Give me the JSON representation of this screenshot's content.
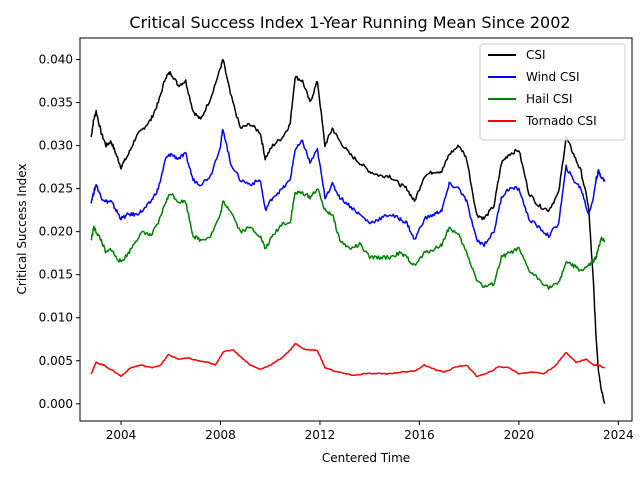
{
  "chart_data": {
    "type": "line",
    "title": "Critical Success Index 1-Year Running Mean Since 2002",
    "xlabel": "Centered Time",
    "ylabel": "Critical Success Index",
    "xlim": [
      2002.35,
      2024.55
    ],
    "ylim": [
      -0.002,
      0.0425
    ],
    "xticks": [
      2004,
      2008,
      2012,
      2016,
      2020,
      2024
    ],
    "yticks": [
      0.0,
      0.005,
      0.01,
      0.015,
      0.02,
      0.025,
      0.03,
      0.035,
      0.04
    ],
    "ytick_labels": [
      "0.000",
      "0.005",
      "0.010",
      "0.015",
      "0.020",
      "0.025",
      "0.030",
      "0.035",
      "0.040"
    ],
    "grid": false,
    "legend_position": "top-right",
    "series": [
      {
        "name": "CSI",
        "color": "#000000",
        "x": [
          2002.8,
          2002.9,
          2003.0,
          2003.2,
          2003.4,
          2003.6,
          2003.8,
          2004.0,
          2004.3,
          2004.6,
          2004.9,
          2005.2,
          2005.5,
          2005.8,
          2006.0,
          2006.3,
          2006.6,
          2006.9,
          2007.2,
          2007.6,
          2008.0,
          2008.1,
          2008.4,
          2008.8,
          2009.2,
          2009.6,
          2009.8,
          2010.1,
          2010.5,
          2010.8,
          2011.0,
          2011.3,
          2011.6,
          2011.9,
          2012.2,
          2012.5,
          2012.8,
          2013.2,
          2013.6,
          2014.0,
          2014.4,
          2014.8,
          2015.2,
          2015.5,
          2015.8,
          2016.2,
          2016.6,
          2016.9,
          2017.2,
          2017.6,
          2017.9,
          2018.3,
          2018.6,
          2019.0,
          2019.3,
          2019.6,
          2020.0,
          2020.4,
          2020.8,
          2021.2,
          2021.6,
          2021.9,
          2022.2,
          2022.5,
          2022.8,
          2023.0,
          2023.1,
          2023.2,
          2023.3,
          2023.45
        ],
        "values": [
          0.031,
          0.033,
          0.034,
          0.0315,
          0.03,
          0.0305,
          0.029,
          0.0275,
          0.029,
          0.031,
          0.032,
          0.033,
          0.035,
          0.038,
          0.0385,
          0.037,
          0.0375,
          0.034,
          0.033,
          0.0355,
          0.039,
          0.04,
          0.036,
          0.032,
          0.0325,
          0.0315,
          0.0285,
          0.03,
          0.031,
          0.0325,
          0.038,
          0.0375,
          0.035,
          0.0375,
          0.03,
          0.032,
          0.0305,
          0.029,
          0.028,
          0.027,
          0.0265,
          0.0265,
          0.0255,
          0.025,
          0.0235,
          0.0265,
          0.027,
          0.027,
          0.029,
          0.03,
          0.0285,
          0.022,
          0.0215,
          0.023,
          0.028,
          0.029,
          0.0295,
          0.0245,
          0.023,
          0.0225,
          0.0245,
          0.031,
          0.029,
          0.027,
          0.023,
          0.014,
          0.008,
          0.004,
          0.002,
          0.0
        ]
      },
      {
        "name": "Wind CSI",
        "color": "#0000ff",
        "x": [
          2002.8,
          2002.9,
          2003.0,
          2003.2,
          2003.4,
          2003.6,
          2003.8,
          2004.0,
          2004.3,
          2004.6,
          2004.9,
          2005.2,
          2005.5,
          2005.8,
          2006.0,
          2006.3,
          2006.6,
          2006.9,
          2007.2,
          2007.6,
          2008.0,
          2008.1,
          2008.4,
          2008.8,
          2009.2,
          2009.6,
          2009.8,
          2010.1,
          2010.5,
          2010.8,
          2011.0,
          2011.3,
          2011.6,
          2011.9,
          2012.2,
          2012.5,
          2012.8,
          2013.2,
          2013.6,
          2014.0,
          2014.4,
          2014.8,
          2015.2,
          2015.5,
          2015.8,
          2016.2,
          2016.6,
          2016.9,
          2017.2,
          2017.6,
          2017.9,
          2018.3,
          2018.6,
          2019.0,
          2019.3,
          2019.6,
          2020.0,
          2020.4,
          2020.8,
          2021.2,
          2021.6,
          2021.9,
          2022.2,
          2022.5,
          2022.8,
          2023.0,
          2023.1,
          2023.2,
          2023.3,
          2023.45
        ],
        "values": [
          0.0235,
          0.0245,
          0.0255,
          0.024,
          0.0235,
          0.0235,
          0.0225,
          0.0215,
          0.022,
          0.022,
          0.0225,
          0.0235,
          0.025,
          0.0285,
          0.029,
          0.0285,
          0.029,
          0.026,
          0.0255,
          0.0265,
          0.03,
          0.032,
          0.028,
          0.026,
          0.0255,
          0.026,
          0.0225,
          0.024,
          0.025,
          0.026,
          0.0295,
          0.0305,
          0.028,
          0.0295,
          0.024,
          0.0255,
          0.024,
          0.023,
          0.022,
          0.021,
          0.0215,
          0.022,
          0.0215,
          0.021,
          0.019,
          0.0215,
          0.022,
          0.0225,
          0.0255,
          0.025,
          0.0235,
          0.019,
          0.0185,
          0.02,
          0.024,
          0.025,
          0.025,
          0.0215,
          0.0205,
          0.0195,
          0.021,
          0.0275,
          0.026,
          0.025,
          0.022,
          0.024,
          0.026,
          0.027,
          0.0265,
          0.0258
        ]
      },
      {
        "name": "Hail CSI",
        "color": "#008000",
        "x": [
          2002.8,
          2002.9,
          2003.0,
          2003.2,
          2003.4,
          2003.6,
          2003.8,
          2004.0,
          2004.3,
          2004.6,
          2004.9,
          2005.2,
          2005.5,
          2005.8,
          2006.0,
          2006.3,
          2006.6,
          2006.9,
          2007.2,
          2007.6,
          2008.0,
          2008.1,
          2008.4,
          2008.8,
          2009.2,
          2009.6,
          2009.8,
          2010.1,
          2010.5,
          2010.8,
          2011.0,
          2011.3,
          2011.6,
          2011.9,
          2012.2,
          2012.5,
          2012.8,
          2013.2,
          2013.6,
          2014.0,
          2014.4,
          2014.8,
          2015.2,
          2015.5,
          2015.8,
          2016.2,
          2016.6,
          2016.9,
          2017.2,
          2017.6,
          2017.9,
          2018.3,
          2018.6,
          2019.0,
          2019.3,
          2019.6,
          2020.0,
          2020.4,
          2020.8,
          2021.2,
          2021.6,
          2021.9,
          2022.2,
          2022.5,
          2022.8,
          2023.0,
          2023.1,
          2023.2,
          2023.3,
          2023.45
        ],
        "values": [
          0.019,
          0.0205,
          0.02,
          0.019,
          0.0175,
          0.018,
          0.017,
          0.0165,
          0.0175,
          0.019,
          0.02,
          0.0195,
          0.021,
          0.0235,
          0.0245,
          0.0235,
          0.0235,
          0.0195,
          0.019,
          0.0195,
          0.022,
          0.0235,
          0.0225,
          0.02,
          0.0205,
          0.0195,
          0.018,
          0.0195,
          0.021,
          0.021,
          0.0245,
          0.0245,
          0.024,
          0.025,
          0.0225,
          0.022,
          0.019,
          0.018,
          0.0185,
          0.017,
          0.017,
          0.017,
          0.0175,
          0.017,
          0.016,
          0.0175,
          0.018,
          0.0185,
          0.0205,
          0.0195,
          0.0175,
          0.0145,
          0.0135,
          0.014,
          0.017,
          0.0175,
          0.018,
          0.0155,
          0.0145,
          0.0135,
          0.014,
          0.0165,
          0.016,
          0.0155,
          0.016,
          0.0165,
          0.017,
          0.018,
          0.0192,
          0.019
        ]
      },
      {
        "name": "Tornado CSI",
        "color": "#ff0000",
        "x": [
          2002.8,
          2003.0,
          2003.3,
          2003.7,
          2004.0,
          2004.4,
          2004.8,
          2005.2,
          2005.6,
          2005.9,
          2006.3,
          2006.7,
          2007.1,
          2007.5,
          2007.8,
          2008.1,
          2008.5,
          2008.8,
          2009.2,
          2009.6,
          2010.0,
          2010.4,
          2010.8,
          2011.0,
          2011.4,
          2011.9,
          2012.2,
          2012.6,
          2013.0,
          2013.4,
          2013.8,
          2014.3,
          2014.8,
          2015.3,
          2015.8,
          2016.2,
          2016.6,
          2017.0,
          2017.5,
          2017.9,
          2018.3,
          2018.7,
          2019.2,
          2019.6,
          2020.0,
          2020.5,
          2021.0,
          2021.5,
          2021.9,
          2022.3,
          2022.7,
          2023.0,
          2023.2,
          2023.45
        ],
        "values": [
          0.0035,
          0.0048,
          0.0045,
          0.0038,
          0.0032,
          0.0042,
          0.0045,
          0.0042,
          0.0045,
          0.0057,
          0.0052,
          0.0053,
          0.005,
          0.0048,
          0.0045,
          0.006,
          0.0063,
          0.0055,
          0.0045,
          0.004,
          0.0045,
          0.0052,
          0.0062,
          0.007,
          0.0063,
          0.0062,
          0.0042,
          0.0038,
          0.0035,
          0.0033,
          0.0035,
          0.0035,
          0.0035,
          0.0037,
          0.0038,
          0.0045,
          0.004,
          0.0037,
          0.0043,
          0.0045,
          0.0032,
          0.0035,
          0.0043,
          0.0042,
          0.0035,
          0.0037,
          0.0035,
          0.0045,
          0.006,
          0.0048,
          0.0052,
          0.0045,
          0.0045,
          0.0042
        ]
      }
    ]
  }
}
